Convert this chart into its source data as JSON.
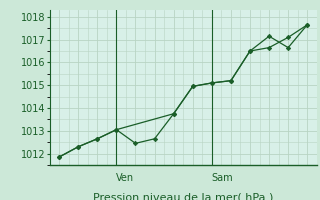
{
  "background_color": "#cce8d8",
  "plot_bg_color": "#d8f0e8",
  "grid_color": "#b8d4c4",
  "line_color": "#1a5e28",
  "marker_color": "#1a5e28",
  "xlabel": "Pression niveau de la mer( hPa )",
  "ylim": [
    1011.5,
    1018.3
  ],
  "yticks": [
    1012,
    1013,
    1014,
    1015,
    1016,
    1017,
    1018
  ],
  "line1_x": [
    0,
    1,
    2,
    3,
    4,
    5,
    6,
    7,
    8,
    9,
    10,
    11,
    12,
    13
  ],
  "line1_y": [
    1011.85,
    1012.3,
    1012.65,
    1013.05,
    1012.45,
    1012.65,
    1013.75,
    1014.95,
    1015.1,
    1015.2,
    1016.5,
    1017.15,
    1016.65,
    1017.65
  ],
  "line2_x": [
    0,
    1,
    2,
    3,
    6,
    7,
    8,
    9,
    10,
    11,
    12,
    13
  ],
  "line2_y": [
    1011.85,
    1012.3,
    1012.65,
    1013.05,
    1013.75,
    1014.95,
    1015.1,
    1015.2,
    1016.5,
    1016.65,
    1017.1,
    1017.65
  ],
  "vline1_x": 3,
  "vline2_x": 8,
  "vline1_label": "Ven",
  "vline2_label": "Sam",
  "xlabel_fontsize": 8,
  "tick_fontsize": 7,
  "xlim": [
    -0.5,
    13.5
  ]
}
